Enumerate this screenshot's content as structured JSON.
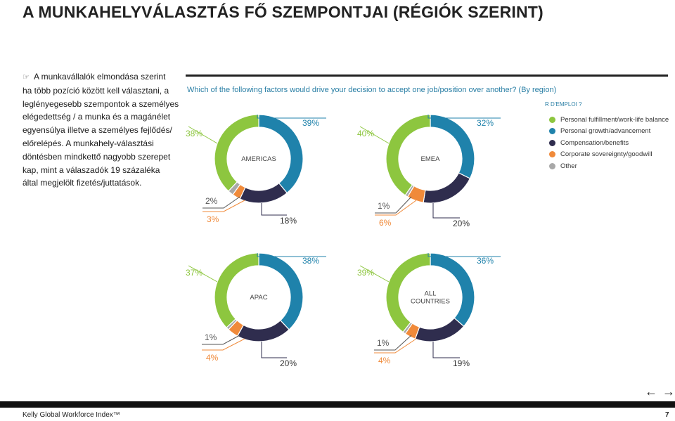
{
  "page": {
    "title": "A MUNKAHELYVÁLASZTÁS FŐ SZEMPONTJAI (RÉGIÓK SZERINT)",
    "body_lines": [
      "A munkavállalók elmondása szerint",
      "ha több pozíció között kell választani, a",
      "leglényegesebb szempontok a személyes",
      "elégedettség / a munka és a magánélet",
      "egyensúlya illetve a személyes fejlődés/",
      "előrelépés. A munkahely-választási",
      "döntésben mindkettő nagyobb szerepet",
      "kap, mint a válaszadók 19 százaléka",
      "által megjelölt fizetés/juttatások."
    ],
    "bullet_icon": "hand-pointer-icon",
    "question": "Which of the following factors would drive your decision to accept one job/position over another? (By region)",
    "cut_text": "R D’EMPLOI ?",
    "nav_prev_icon": "arrow-left-icon",
    "nav_next_icon": "arrow-right-icon",
    "nav_prev": "←",
    "nav_next": "→",
    "footer_left": "Kelly Global Workforce Index™",
    "footer_right": "7"
  },
  "chart_data": {
    "type": "pie",
    "donut": true,
    "legend_position": "right",
    "legend": [
      {
        "label": "Personal fulfillment/work-life balance",
        "color": "#8dc63f"
      },
      {
        "label": "Personal growth/advancement",
        "color": "#1f82ab"
      },
      {
        "label": "Compensation/benefits",
        "color": "#2f2d4e"
      },
      {
        "label": "Corporate sovereignty/goodwill",
        "color": "#f08a3a"
      },
      {
        "label": "Other",
        "color": "#a8a8a8"
      }
    ],
    "charts": [
      {
        "region": "AMERICAS",
        "values": [
          38,
          39,
          18,
          3,
          2
        ],
        "labels": [
          "38%",
          "39%",
          "18%",
          "3%",
          "2%"
        ]
      },
      {
        "region": "EMEA",
        "values": [
          40,
          32,
          20,
          6,
          1
        ],
        "labels": [
          "40%",
          "32%",
          "20%",
          "6%",
          "1%"
        ]
      },
      {
        "region": "APAC",
        "values": [
          37,
          38,
          20,
          4,
          1
        ],
        "labels": [
          "37%",
          "38%",
          "20%",
          "4%",
          "1%"
        ]
      },
      {
        "region": "ALL COUNTRIES",
        "values": [
          39,
          36,
          19,
          4,
          1
        ],
        "labels": [
          "39%",
          "36%",
          "19%",
          "4%",
          "1%"
        ]
      }
    ]
  }
}
